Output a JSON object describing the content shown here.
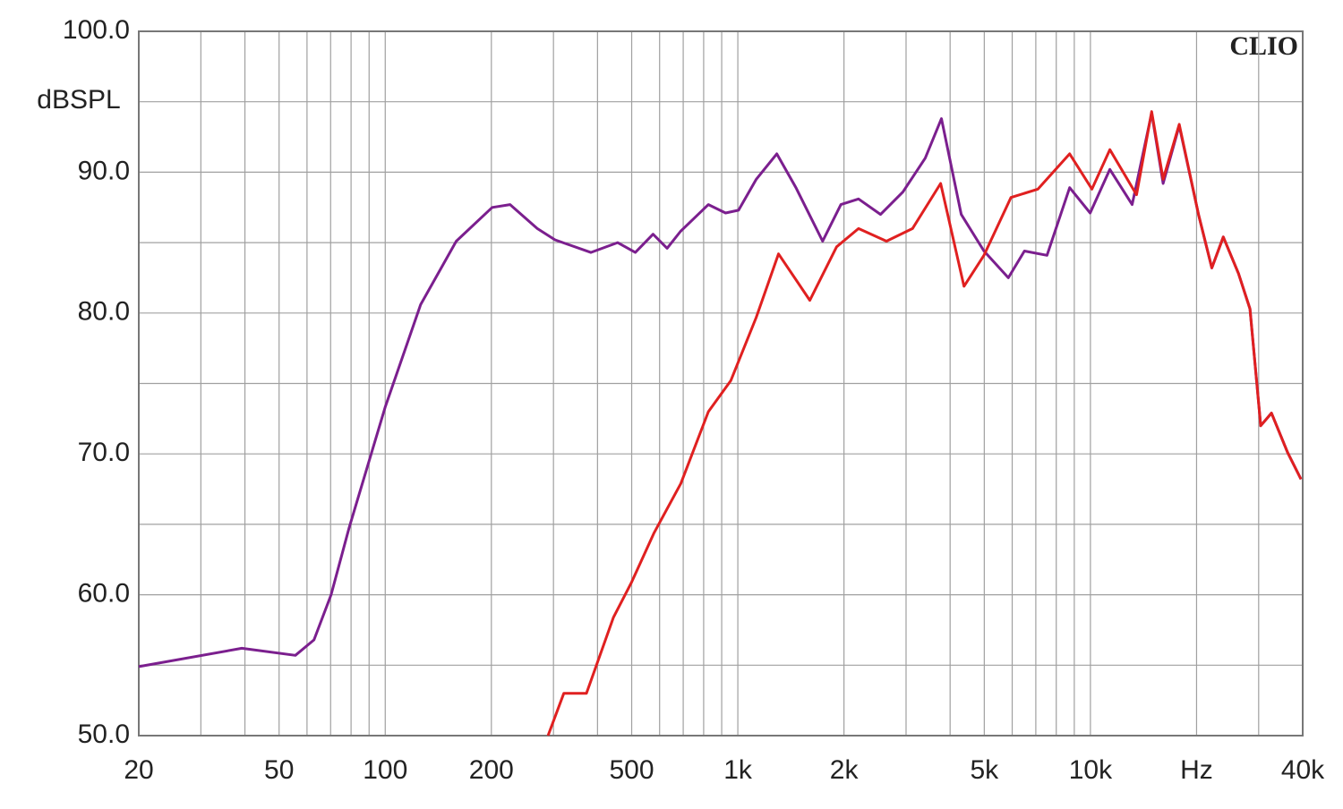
{
  "chart_data": {
    "type": "line",
    "y_label": "dBSPL",
    "annotation": "CLIO",
    "xscale": "log",
    "xlim": [
      20,
      40000
    ],
    "ylim": [
      50,
      100
    ],
    "xticks": [
      20,
      50,
      100,
      200,
      500,
      {
        "value": 1000,
        "label": "1k"
      },
      {
        "value": 2000,
        "label": "2k"
      },
      {
        "value": 5000,
        "label": "5k"
      },
      {
        "value": 10000,
        "label": "10k"
      },
      {
        "value": 20000,
        "label": "Hz"
      },
      {
        "value": 40000,
        "label": "40k"
      }
    ],
    "yticks": [
      {
        "value": 50,
        "label": "50.0"
      },
      {
        "value": 60,
        "label": "60.0"
      },
      {
        "value": 70,
        "label": "70.0"
      },
      {
        "value": 80,
        "label": "80.0"
      },
      {
        "value": 90,
        "label": "90.0"
      },
      {
        "value": 100,
        "label": "100.0"
      }
    ],
    "xgrid": [
      20,
      30,
      40,
      50,
      60,
      70,
      80,
      90,
      100,
      200,
      300,
      400,
      500,
      600,
      700,
      800,
      900,
      1000,
      2000,
      3000,
      4000,
      5000,
      6000,
      7000,
      8000,
      9000,
      10000,
      20000,
      30000,
      40000
    ],
    "ygrid": [
      50,
      55,
      60,
      65,
      70,
      75,
      80,
      85,
      90,
      95,
      100
    ],
    "grid": true,
    "series": [
      {
        "color": "#7b1f8e",
        "x": [
          20,
          39.2,
          55.6,
          62.8,
          70.2,
          78.9,
          99.9,
          126,
          159,
          201,
          226,
          270,
          303,
          383,
          456,
          512,
          575,
          630,
          688,
          825,
          923,
          1005,
          1128,
          1290,
          1462,
          1740,
          1960,
          2200,
          2540,
          2940,
          3400,
          3780,
          4300,
          4990,
          5850,
          6500,
          7530,
          8730,
          9980,
          11350,
          13130,
          14920,
          16080,
          17860,
          20250,
          22100,
          23820,
          26300,
          28350,
          30410,
          32620,
          36230,
          39560
        ],
        "values": [
          54.9,
          56.2,
          55.7,
          56.8,
          60.0,
          64.7,
          73.3,
          80.6,
          85.1,
          87.5,
          87.7,
          86.0,
          85.2,
          84.3,
          85.0,
          84.3,
          85.6,
          84.6,
          85.8,
          87.7,
          87.1,
          87.3,
          89.5,
          91.3,
          88.9,
          85.1,
          87.7,
          88.1,
          87.0,
          88.6,
          91.0,
          93.8,
          87.0,
          84.4,
          82.5,
          84.4,
          84.1,
          88.9,
          87.1,
          90.2,
          87.7,
          94.2,
          89.2,
          93.3,
          87.0,
          83.2,
          85.4,
          82.8,
          80.3,
          72.0,
          72.9,
          70.1,
          68.2
        ]
      },
      {
        "color": "#e02020",
        "x": [
          289.5,
          321,
          372,
          444,
          500,
          579,
          689,
          825,
          955,
          1128,
          1304,
          1600,
          1906,
          2200,
          2640,
          3130,
          3760,
          4380,
          4990,
          5950,
          7100,
          8730,
          10100,
          11350,
          13510,
          14920,
          16080,
          17860,
          20250,
          22100,
          23820,
          26300,
          28350,
          30410,
          32620,
          36230,
          39560
        ],
        "values": [
          50.0,
          53.0,
          53.0,
          58.4,
          60.9,
          64.4,
          67.9,
          73.0,
          75.2,
          79.7,
          84.2,
          80.9,
          84.7,
          86.0,
          85.1,
          86.0,
          89.2,
          81.9,
          84.1,
          88.2,
          88.8,
          91.3,
          88.8,
          91.6,
          88.4,
          94.3,
          89.5,
          93.4,
          87.0,
          83.2,
          85.4,
          82.8,
          80.3,
          72.0,
          72.9,
          70.1,
          68.2
        ]
      }
    ]
  }
}
